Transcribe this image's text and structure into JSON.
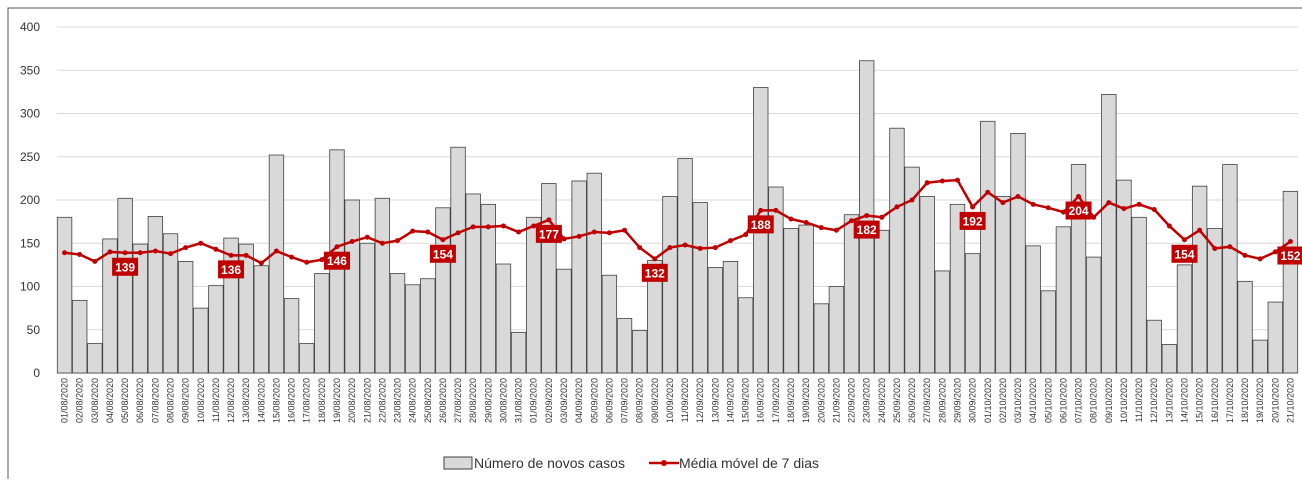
{
  "chart_data": {
    "type": "bar_line",
    "categories": [
      "01/08/2020",
      "02/08/2020",
      "03/08/2020",
      "04/08/2020",
      "05/08/2020",
      "06/08/2020",
      "07/08/2020",
      "08/08/2020",
      "09/08/2020",
      "10/08/2020",
      "11/08/2020",
      "12/08/2020",
      "13/08/2020",
      "14/08/2020",
      "15/08/2020",
      "16/08/2020",
      "17/08/2020",
      "18/08/2020",
      "19/08/2020",
      "20/08/2020",
      "21/08/2020",
      "22/08/2020",
      "23/08/2020",
      "24/08/2020",
      "25/08/2020",
      "26/08/2020",
      "27/08/2020",
      "28/08/2020",
      "29/08/2020",
      "30/08/2020",
      "31/08/2020",
      "01/09/2020",
      "02/09/2020",
      "03/09/2020",
      "04/09/2020",
      "05/09/2020",
      "06/09/2020",
      "07/09/2020",
      "08/09/2020",
      "09/09/2020",
      "10/09/2020",
      "11/09/2020",
      "12/09/2020",
      "13/09/2020",
      "14/09/2020",
      "15/09/2020",
      "16/09/2020",
      "17/09/2020",
      "18/09/2020",
      "19/09/2020",
      "20/09/2020",
      "21/09/2020",
      "22/09/2020",
      "23/09/2020",
      "24/09/2020",
      "25/09/2020",
      "26/09/2020",
      "27/09/2020",
      "28/09/2020",
      "29/09/2020",
      "30/09/2020",
      "01/10/2020",
      "02/10/2020",
      "03/10/2020",
      "04/10/2020",
      "05/10/2020",
      "06/10/2020",
      "07/10/2020",
      "08/10/2020",
      "09/10/2020",
      "10/10/2020",
      "11/10/2020",
      "12/10/2020",
      "13/10/2020",
      "14/10/2020",
      "15/10/2020",
      "16/10/2020",
      "17/10/2020",
      "18/10/2020",
      "19/10/2020",
      "20/10/2020",
      "21/10/2020"
    ],
    "series": [
      {
        "name": "Número de novos casos",
        "type": "bar",
        "color": "#d9d9d9",
        "values": [
          180,
          84,
          34,
          155,
          202,
          149,
          181,
          161,
          129,
          75,
          101,
          156,
          149,
          124,
          252,
          86,
          34,
          115,
          258,
          200,
          150,
          202,
          115,
          102,
          109,
          191,
          261,
          207,
          195,
          126,
          47,
          180,
          219,
          120,
          222,
          231,
          113,
          63,
          49,
          130,
          204,
          248,
          197,
          122,
          129,
          87,
          330,
          215,
          167,
          171,
          80,
          100,
          183,
          361,
          165,
          283,
          238,
          204,
          118,
          195,
          138,
          291,
          204,
          277,
          147,
          95,
          169,
          241,
          134,
          322,
          223,
          180,
          61,
          33,
          125,
          216,
          167,
          241,
          106,
          38,
          82,
          210
        ]
      },
      {
        "name": "Média móvel de 7 dias",
        "type": "line",
        "color": "#c00000",
        "values": [
          139,
          137,
          129,
          140,
          139,
          139,
          141,
          138,
          145,
          150,
          143,
          136,
          136,
          127,
          141,
          134,
          128,
          131,
          146,
          152,
          157,
          150,
          153,
          164,
          163,
          154,
          162,
          169,
          169,
          170,
          163,
          170,
          177,
          155,
          158,
          163,
          162,
          165,
          145,
          132,
          145,
          148,
          144,
          145,
          153,
          160,
          188,
          188,
          178,
          174,
          168,
          165,
          176,
          182,
          180,
          192,
          200,
          220,
          222,
          223,
          192,
          209,
          197,
          204,
          195,
          191,
          186,
          204,
          180,
          197,
          190,
          195,
          189,
          170,
          154,
          165,
          144,
          146,
          136,
          132,
          140,
          152
        ],
        "value_labels": [
          null,
          null,
          null,
          null,
          "139",
          null,
          null,
          null,
          null,
          null,
          null,
          "136",
          null,
          null,
          null,
          null,
          null,
          null,
          "146",
          null,
          null,
          null,
          null,
          null,
          null,
          "154",
          null,
          null,
          null,
          null,
          null,
          null,
          "177",
          null,
          null,
          null,
          null,
          null,
          null,
          "132",
          null,
          null,
          null,
          null,
          null,
          null,
          "188",
          null,
          null,
          null,
          null,
          null,
          null,
          "182",
          null,
          null,
          null,
          null,
          null,
          null,
          "192",
          null,
          null,
          null,
          null,
          null,
          null,
          "204",
          null,
          null,
          null,
          null,
          null,
          null,
          "154",
          null,
          null,
          null,
          null,
          null,
          null,
          "152"
        ]
      }
    ],
    "ylim": [
      0,
      400
    ],
    "yticks": [
      0,
      50,
      100,
      150,
      200,
      250,
      300,
      350,
      400
    ],
    "grid": true,
    "legend": "bottom"
  }
}
